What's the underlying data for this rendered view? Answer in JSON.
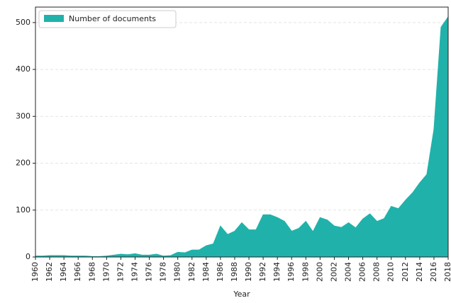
{
  "chart_data": {
    "type": "area",
    "xlabel": "Year",
    "x": [
      1960,
      1961,
      1962,
      1963,
      1964,
      1965,
      1966,
      1967,
      1968,
      1969,
      1970,
      1971,
      1972,
      1973,
      1974,
      1975,
      1976,
      1977,
      1978,
      1979,
      1980,
      1981,
      1982,
      1983,
      1984,
      1985,
      1986,
      1987,
      1988,
      1989,
      1990,
      1991,
      1992,
      1993,
      1994,
      1995,
      1996,
      1997,
      1998,
      1999,
      2000,
      2001,
      2002,
      2003,
      2004,
      2005,
      2006,
      2007,
      2008,
      2009,
      2010,
      2011,
      2012,
      2013,
      2014,
      2015,
      2016,
      2017,
      2018
    ],
    "series": [
      {
        "name": "Number of documents",
        "color": "#20b2aa",
        "values": [
          2,
          2,
          3,
          3,
          3,
          2,
          2,
          2,
          1,
          1,
          2,
          4,
          6,
          5,
          7,
          4,
          4,
          6,
          2,
          3,
          10,
          9,
          15,
          15,
          24,
          28,
          66,
          48,
          55,
          73,
          58,
          58,
          90,
          90,
          84,
          76,
          55,
          61,
          76,
          54,
          84,
          79,
          66,
          63,
          73,
          62,
          81,
          92,
          76,
          82,
          108,
          103,
          121,
          137,
          158,
          176,
          272,
          490,
          512
        ]
      }
    ],
    "xlim": [
      1960,
      2018
    ],
    "xticks": [
      1960,
      1962,
      1964,
      1966,
      1968,
      1970,
      1972,
      1974,
      1976,
      1978,
      1980,
      1982,
      1984,
      1986,
      1988,
      1990,
      1992,
      1994,
      1996,
      1998,
      2000,
      2002,
      2004,
      2006,
      2008,
      2010,
      2012,
      2014,
      2016,
      2018
    ],
    "ylim": [
      0,
      533
    ],
    "yticks": [
      0,
      100,
      200,
      300,
      400,
      500
    ],
    "grid": true,
    "legend": "upper left"
  }
}
